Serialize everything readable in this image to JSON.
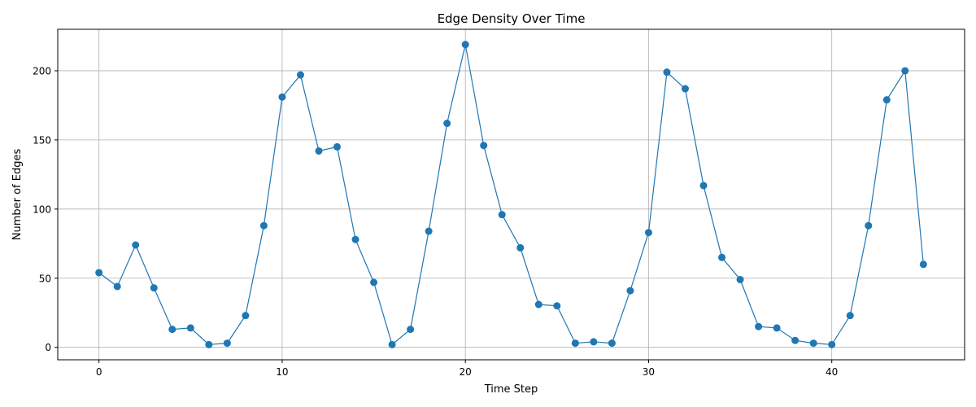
{
  "chart_data": {
    "type": "line",
    "title": "Edge Density Over Time",
    "xlabel": "Time Step",
    "ylabel": "Number of Edges",
    "xlim": [
      -2.25,
      47.25
    ],
    "ylim": [
      -9,
      230
    ],
    "xticks": [
      0,
      10,
      20,
      30,
      40
    ],
    "yticks": [
      0,
      50,
      100,
      150,
      200
    ],
    "grid": true,
    "color": "#1f77b4",
    "series": [
      {
        "x": [
          0,
          1,
          2,
          3,
          4,
          5,
          6,
          7,
          8,
          9,
          10,
          11,
          12,
          13,
          14,
          15,
          16,
          17,
          18,
          19,
          20,
          21,
          22,
          23,
          24,
          25,
          26,
          27,
          28,
          29,
          30,
          31,
          32,
          33,
          34,
          35,
          36,
          37,
          38,
          39,
          40,
          41,
          42,
          43,
          44,
          45
        ],
        "y": [
          54,
          44,
          74,
          43,
          13,
          14,
          2,
          3,
          23,
          88,
          181,
          197,
          142,
          145,
          78,
          47,
          2,
          13,
          84,
          162,
          219,
          146,
          96,
          72,
          31,
          30,
          3,
          4,
          3,
          41,
          83,
          199,
          187,
          117,
          65,
          49,
          15,
          14,
          5,
          3,
          2,
          23,
          88,
          179,
          200,
          60
        ]
      }
    ]
  }
}
